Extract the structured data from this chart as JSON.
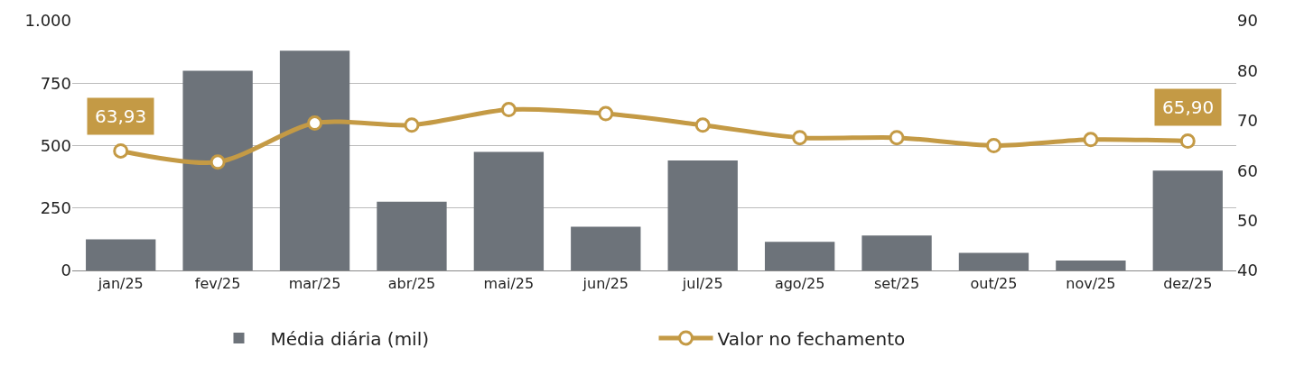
{
  "chart_data": {
    "type": "bar",
    "categories": [
      "jan/25",
      "fev/25",
      "mar/25",
      "abr/25",
      "mai/25",
      "jun/25",
      "jul/25",
      "ago/25",
      "set/25",
      "out/25",
      "nov/25",
      "dez/25"
    ],
    "series": [
      {
        "name": "Média diária (mil)",
        "color": "#6d737a",
        "values": [
          125,
          800,
          880,
          275,
          475,
          175,
          440,
          115,
          140,
          70,
          40,
          400
        ]
      },
      {
        "name": "Valor no fechamento",
        "type": "line",
        "axis": "y2",
        "color": "#c49a45",
        "values": [
          63.93,
          61.7,
          69.5,
          69.1,
          72.2,
          71.4,
          69.1,
          66.6,
          66.6,
          65.0,
          66.2,
          65.9
        ],
        "value_labels": [
          "63,93",
          null,
          null,
          null,
          null,
          null,
          null,
          null,
          null,
          null,
          null,
          "65,90"
        ]
      }
    ],
    "ylim": [
      0,
      1000
    ],
    "yticks": [
      0,
      250,
      500,
      750,
      {
        "value": 1000,
        "label": "1.000"
      }
    ],
    "y2lim": [
      40,
      90
    ],
    "y2ticks": [
      40,
      50,
      60,
      70,
      80,
      90
    ],
    "grid": "y",
    "legend": "bottom",
    "marker": "circle",
    "line_style": "solid"
  }
}
